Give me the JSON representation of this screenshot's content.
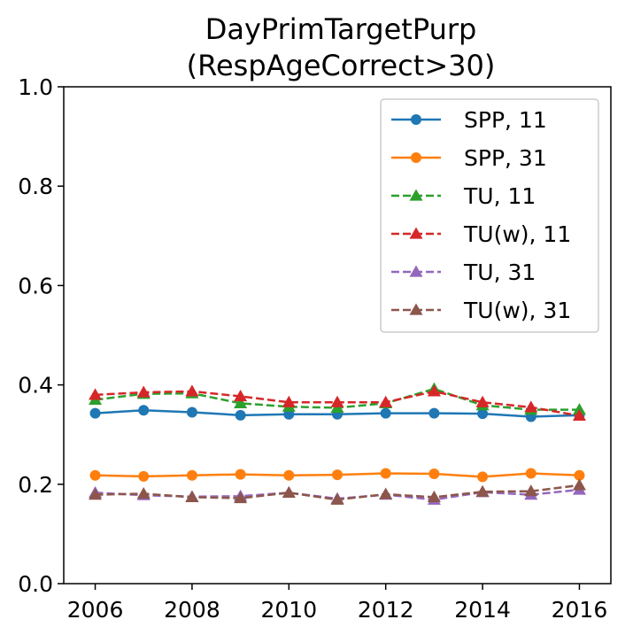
{
  "chart_data": {
    "type": "line",
    "title_lines": [
      "DayPrimTargetPurp",
      "(RespAgeCorrect>30)"
    ],
    "xlabel": "",
    "ylabel": "",
    "x": [
      2006,
      2007,
      2008,
      2009,
      2010,
      2011,
      2012,
      2013,
      2014,
      2015,
      2016
    ],
    "xlim": [
      2005.35,
      2016.65
    ],
    "ylim": [
      0.0,
      1.0
    ],
    "x_ticks": [
      "2006",
      "2008",
      "2010",
      "2012",
      "2014",
      "2016"
    ],
    "y_ticks": [
      "0.0",
      "0.2",
      "0.4",
      "0.6",
      "0.8",
      "1.0"
    ],
    "grid": false,
    "legend_position": "top-right",
    "series": [
      {
        "name": "SPP, 11",
        "color": "#1f77b4",
        "marker": "circle",
        "linestyle": "solid",
        "values": [
          0.343,
          0.349,
          0.345,
          0.339,
          0.341,
          0.341,
          0.343,
          0.343,
          0.342,
          0.336,
          0.339
        ]
      },
      {
        "name": "SPP, 31",
        "color": "#ff7f0e",
        "marker": "circle",
        "linestyle": "solid",
        "values": [
          0.218,
          0.216,
          0.218,
          0.22,
          0.218,
          0.219,
          0.222,
          0.221,
          0.215,
          0.222,
          0.218
        ]
      },
      {
        "name": "TU, 11",
        "color": "#2ca02c",
        "marker": "triangle",
        "linestyle": "dashed",
        "values": [
          0.37,
          0.382,
          0.383,
          0.363,
          0.356,
          0.354,
          0.363,
          0.392,
          0.359,
          0.35,
          0.35
        ]
      },
      {
        "name": "TU(w), 11",
        "color": "#d62728",
        "marker": "triangle",
        "linestyle": "dashed",
        "values": [
          0.38,
          0.385,
          0.387,
          0.377,
          0.365,
          0.365,
          0.365,
          0.387,
          0.365,
          0.355,
          0.338
        ]
      },
      {
        "name": "TU, 31",
        "color": "#9467bd",
        "marker": "triangle",
        "linestyle": "dashed",
        "values": [
          0.183,
          0.178,
          0.175,
          0.176,
          0.183,
          0.171,
          0.179,
          0.169,
          0.184,
          0.179,
          0.189
        ]
      },
      {
        "name": "TU(w), 31",
        "color": "#8c564b",
        "marker": "triangle",
        "linestyle": "dashed",
        "values": [
          0.179,
          0.181,
          0.174,
          0.172,
          0.183,
          0.169,
          0.18,
          0.174,
          0.185,
          0.186,
          0.198
        ]
      }
    ]
  }
}
